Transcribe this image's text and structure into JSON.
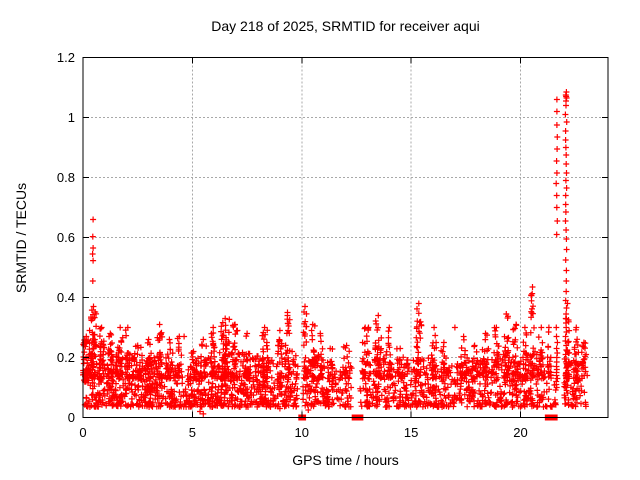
{
  "title": "Day 218 of 2025, SRMTID for receiver aqui",
  "chart_data": {
    "type": "scatter",
    "title": "Day 218 of 2025, SRMTID for receiver aqui",
    "xlabel": "GPS time / hours",
    "ylabel": "SRMTID / TECUs",
    "xlim": [
      0,
      24
    ],
    "ylim": [
      0,
      1.2
    ],
    "xticks": [
      0,
      5,
      10,
      15,
      20
    ],
    "xtick_labels": [
      "0",
      "5",
      "10",
      "15",
      "20"
    ],
    "yticks": [
      0,
      0.2,
      0.4,
      0.6,
      0.8,
      1,
      1.2
    ],
    "ytick_labels": [
      "0",
      "0.2",
      "0.4",
      "0.6",
      "0.8",
      "1",
      "1.2"
    ],
    "grid": true,
    "legend": "none",
    "marker": "plus",
    "marker_color": "#ff0000",
    "grid_color": "#a8a8a8",
    "border_color": "#000000",
    "seed": 218,
    "baseline_band": {
      "y_floor": 0.035,
      "points_per_hour": [
        120,
        110,
        100,
        95,
        90,
        105,
        115,
        100,
        95,
        95,
        75,
        65,
        55,
        85,
        80,
        85,
        75,
        75,
        80,
        90,
        85,
        55,
        65
      ],
      "band_top_per_hour": [
        0.26,
        0.22,
        0.2,
        0.2,
        0.18,
        0.2,
        0.22,
        0.22,
        0.2,
        0.22,
        0.2,
        0.18,
        0.18,
        0.22,
        0.2,
        0.2,
        0.18,
        0.2,
        0.2,
        0.22,
        0.22,
        0.18,
        0.2
      ],
      "gaps": [
        [
          9.82,
          10.06
        ],
        [
          12.28,
          12.6
        ],
        [
          21.62,
          22.0
        ]
      ]
    },
    "peaks": [
      [
        0.15,
        0.15,
        0.27,
        25
      ],
      [
        0.48,
        0.12,
        0.37,
        45
      ],
      [
        0.85,
        0.15,
        0.3,
        25
      ],
      [
        1.25,
        0.12,
        0.28,
        20
      ],
      [
        1.7,
        0.15,
        0.3,
        25
      ],
      [
        2.05,
        0.1,
        0.3,
        20
      ],
      [
        2.5,
        0.2,
        0.24,
        20
      ],
      [
        3.0,
        0.15,
        0.26,
        20
      ],
      [
        3.5,
        0.12,
        0.31,
        25
      ],
      [
        3.95,
        0.15,
        0.26,
        18
      ],
      [
        4.4,
        0.15,
        0.27,
        15
      ],
      [
        5.05,
        0.15,
        0.22,
        15
      ],
      [
        5.5,
        0.15,
        0.26,
        18
      ],
      [
        5.95,
        0.12,
        0.3,
        20
      ],
      [
        6.5,
        0.2,
        0.33,
        40
      ],
      [
        6.95,
        0.12,
        0.31,
        25
      ],
      [
        7.5,
        0.15,
        0.28,
        20
      ],
      [
        8.3,
        0.15,
        0.3,
        25
      ],
      [
        9.0,
        0.12,
        0.29,
        20
      ],
      [
        9.35,
        0.1,
        0.34,
        22
      ],
      [
        10.15,
        0.07,
        0.37,
        22
      ],
      [
        10.5,
        0.12,
        0.31,
        22
      ],
      [
        10.85,
        0.12,
        0.28,
        18
      ],
      [
        11.3,
        0.15,
        0.23,
        15
      ],
      [
        12.05,
        0.15,
        0.24,
        18
      ],
      [
        12.9,
        0.15,
        0.3,
        22
      ],
      [
        13.5,
        0.15,
        0.34,
        30
      ],
      [
        14.0,
        0.12,
        0.3,
        18
      ],
      [
        14.5,
        0.15,
        0.23,
        15
      ],
      [
        15.35,
        0.12,
        0.38,
        28
      ],
      [
        16.05,
        0.12,
        0.3,
        20
      ],
      [
        16.5,
        0.15,
        0.25,
        15
      ],
      [
        17.4,
        0.15,
        0.27,
        20
      ],
      [
        17.9,
        0.15,
        0.24,
        15
      ],
      [
        18.4,
        0.15,
        0.28,
        18
      ],
      [
        18.9,
        0.12,
        0.3,
        20
      ],
      [
        19.35,
        0.12,
        0.345,
        25
      ],
      [
        19.8,
        0.15,
        0.31,
        22
      ],
      [
        20.2,
        0.12,
        0.3,
        20
      ],
      [
        20.55,
        0.08,
        0.435,
        25
      ],
      [
        20.95,
        0.12,
        0.3,
        18
      ],
      [
        21.3,
        0.1,
        0.3,
        15
      ],
      [
        22.15,
        0.08,
        0.38,
        30
      ],
      [
        22.55,
        0.12,
        0.3,
        25
      ],
      [
        22.9,
        0.12,
        0.25,
        15
      ]
    ],
    "spike_columns": [
      {
        "x": 21.66,
        "ys": [
          1.06,
          1.02,
          0.975,
          0.935,
          0.895,
          0.855,
          0.815,
          0.78,
          0.74,
          0.7,
          0.655,
          0.61,
          0.3,
          0.27,
          0.25,
          0.23,
          0.215,
          0.2,
          0.185,
          0.17,
          0.16,
          0.15,
          0.14,
          0.13,
          0.12,
          0.11,
          0.1
        ]
      },
      {
        "x": 22.08,
        "ys": [
          1.085,
          1.075,
          1.07,
          1.065,
          1.055,
          1.04,
          1.01,
          0.985,
          0.955,
          0.925,
          0.9,
          0.875,
          0.845,
          0.815,
          0.79,
          0.765,
          0.74,
          0.71,
          0.685,
          0.655,
          0.625,
          0.595,
          0.56,
          0.525,
          0.49,
          0.455,
          0.42,
          0.39,
          0.365,
          0.345,
          0.33,
          0.315,
          0.3,
          0.285,
          0.27,
          0.255,
          0.24,
          0.225,
          0.21,
          0.195,
          0.18,
          0.165,
          0.15,
          0.14,
          0.13,
          0.12,
          0.11,
          0.1,
          0.09
        ]
      }
    ],
    "outliers": [
      [
        0.46,
        0.66
      ],
      [
        0.45,
        0.603
      ],
      [
        0.46,
        0.565
      ],
      [
        0.44,
        0.545
      ],
      [
        0.46,
        0.523
      ],
      [
        0.45,
        0.455
      ],
      [
        0.3,
        0.29
      ],
      [
        4.62,
        0.27
      ],
      [
        9.35,
        0.35
      ],
      [
        13.05,
        0.3
      ],
      [
        17.0,
        0.3
      ],
      [
        5.35,
        0.02
      ],
      [
        5.5,
        0.012
      ],
      [
        10.3,
        0.025
      ],
      [
        9.0,
        0.03
      ],
      [
        22.85,
        0.18
      ],
      [
        23.0,
        0.21
      ],
      [
        23.05,
        0.14
      ]
    ],
    "zero_points": [
      [
        9.98,
        0
      ],
      [
        10.06,
        0
      ],
      [
        12.42,
        0
      ],
      [
        12.6,
        0
      ],
      [
        12.68,
        0
      ],
      [
        21.25,
        0
      ],
      [
        21.48,
        0
      ],
      [
        21.56,
        0
      ]
    ]
  }
}
